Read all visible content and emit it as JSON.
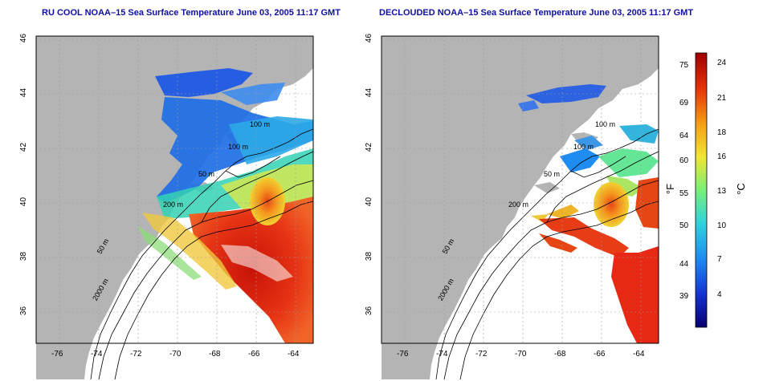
{
  "panels": [
    {
      "title": "RU COOL NOAA–15 Sea Surface Temperature June 03, 2005 11:17 GMT",
      "contour_labels": [
        "100 m",
        "100 m",
        "50 m",
        "200 m",
        "50 m",
        "2000 m"
      ]
    },
    {
      "title": "DECLOUDED NOAA–15 Sea Surface Temperature June 03, 2005 11:17 GMT",
      "contour_labels": [
        "100 m",
        "100 m",
        "50 m",
        "200 m",
        "50 m",
        "2000 m"
      ]
    }
  ],
  "x_ticks": [
    "-76",
    "-74",
    "-72",
    "-70",
    "-68",
    "-66",
    "-64"
  ],
  "y_ticks": [
    "46",
    "44",
    "42",
    "40",
    "38",
    "36"
  ],
  "colorbar": {
    "fahrenheit_unit": "°F",
    "celsius_unit": "°C",
    "fahrenheit_ticks": [
      "75",
      "69",
      "64",
      "60",
      "55",
      "50",
      "44",
      "39"
    ],
    "celsius_ticks": [
      "24",
      "21",
      "18",
      "16",
      "13",
      "10",
      "7",
      "4"
    ],
    "colors": [
      "#08006e",
      "#1432d2",
      "#1e8cf0",
      "#32d2dc",
      "#78f078",
      "#f0e632",
      "#f5a014",
      "#e6320a",
      "#a00000"
    ]
  },
  "colors": {
    "land": "#b4b4b4",
    "warm": "#e62814",
    "cold": "#1e5ae6",
    "title": "#1010a0"
  }
}
